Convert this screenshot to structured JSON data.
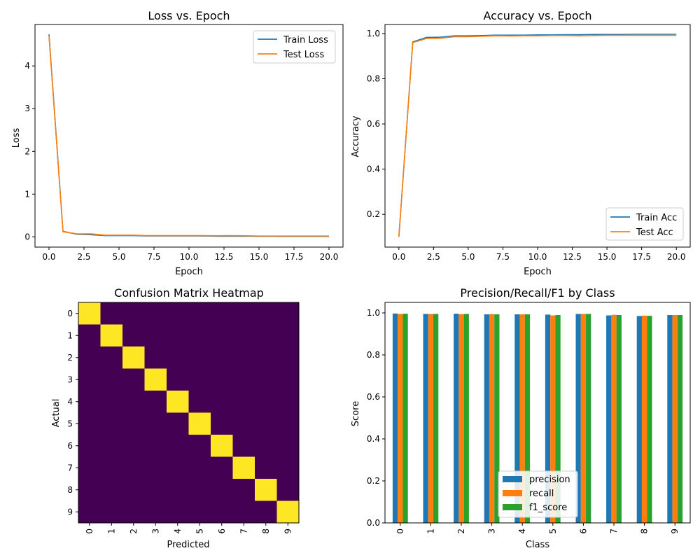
{
  "chart_data": [
    {
      "type": "line",
      "title": "Loss vs. Epoch",
      "xlabel": "Epoch",
      "ylabel": "Loss",
      "xlim": [
        -1,
        21
      ],
      "ylim": [
        -0.24,
        4.97
      ],
      "xticks": [
        0,
        2.5,
        5,
        7.5,
        10,
        12.5,
        15,
        17.5,
        20
      ],
      "xtick_labels": [
        "0.0",
        "2.5",
        "5.0",
        "7.5",
        "10.0",
        "12.5",
        "15.0",
        "17.5",
        "20.0"
      ],
      "yticks": [
        0,
        1,
        2,
        3,
        4
      ],
      "ytick_labels": [
        "0",
        "1",
        "2",
        "3",
        "4"
      ],
      "legend_position": "top-right",
      "x": [
        0,
        1,
        2,
        3,
        4,
        5,
        6,
        7,
        8,
        9,
        10,
        11,
        12,
        13,
        14,
        15,
        16,
        17,
        18,
        19,
        20
      ],
      "series": [
        {
          "name": "Train Loss",
          "color": "#1f77b4",
          "values": [
            4.74,
            0.13,
            0.06,
            0.05,
            0.03,
            0.03,
            0.03,
            0.02,
            0.02,
            0.02,
            0.02,
            0.02,
            0.015,
            0.015,
            0.015,
            0.012,
            0.012,
            0.011,
            0.011,
            0.01,
            0.01
          ]
        },
        {
          "name": "Test Loss",
          "color": "#ff7f0e",
          "values": [
            4.7,
            0.12,
            0.07,
            0.07,
            0.04,
            0.04,
            0.04,
            0.03,
            0.03,
            0.03,
            0.03,
            0.03,
            0.025,
            0.03,
            0.025,
            0.02,
            0.02,
            0.02,
            0.02,
            0.02,
            0.02
          ]
        }
      ]
    },
    {
      "type": "line",
      "title": "Accuracy vs. Epoch",
      "xlabel": "Epoch",
      "ylabel": "Accuracy",
      "xlim": [
        -1,
        21
      ],
      "ylim": [
        0.055,
        1.04
      ],
      "xticks": [
        0,
        2.5,
        5,
        7.5,
        10,
        12.5,
        15,
        17.5,
        20
      ],
      "xtick_labels": [
        "0.0",
        "2.5",
        "5.0",
        "7.5",
        "10.0",
        "12.5",
        "15.0",
        "17.5",
        "20.0"
      ],
      "yticks": [
        0.2,
        0.4,
        0.6,
        0.8,
        1.0
      ],
      "ytick_labels": [
        "0.2",
        "0.4",
        "0.6",
        "0.8",
        "1.0"
      ],
      "legend_position": "lower-right",
      "x": [
        0,
        1,
        2,
        3,
        4,
        5,
        6,
        7,
        8,
        9,
        10,
        11,
        12,
        13,
        14,
        15,
        16,
        17,
        18,
        19,
        20
      ],
      "series": [
        {
          "name": "Train Acc",
          "color": "#1f77b4",
          "values": [
            0.1,
            0.963,
            0.983,
            0.984,
            0.99,
            0.99,
            0.991,
            0.993,
            0.993,
            0.993,
            0.994,
            0.994,
            0.995,
            0.995,
            0.996,
            0.996,
            0.996,
            0.997,
            0.997,
            0.997,
            0.997
          ]
        },
        {
          "name": "Test Acc",
          "color": "#ff7f0e",
          "values": [
            0.1,
            0.96,
            0.978,
            0.979,
            0.986,
            0.986,
            0.988,
            0.99,
            0.989,
            0.99,
            0.99,
            0.991,
            0.991,
            0.99,
            0.991,
            0.992,
            0.992,
            0.992,
            0.992,
            0.992,
            0.992
          ]
        }
      ]
    },
    {
      "type": "heatmap",
      "title": "Confusion Matrix Heatmap",
      "xlabel": "Predicted",
      "ylabel": "Actual",
      "labels": [
        "0",
        "1",
        "2",
        "3",
        "4",
        "5",
        "6",
        "7",
        "8",
        "9"
      ],
      "matrix": [
        [
          1,
          0,
          0,
          0,
          0,
          0,
          0,
          0,
          0,
          0
        ],
        [
          0,
          1,
          0,
          0,
          0,
          0,
          0,
          0,
          0,
          0
        ],
        [
          0,
          0,
          1,
          0,
          0,
          0,
          0,
          0,
          0,
          0
        ],
        [
          0,
          0,
          0,
          1,
          0,
          0,
          0,
          0,
          0,
          0
        ],
        [
          0,
          0,
          0,
          0,
          1,
          0,
          0,
          0,
          0,
          0
        ],
        [
          0,
          0,
          0,
          0,
          0,
          1,
          0,
          0,
          0,
          0
        ],
        [
          0,
          0,
          0,
          0,
          0,
          0,
          1,
          0,
          0,
          0
        ],
        [
          0,
          0,
          0,
          0,
          0,
          0,
          0,
          1,
          0,
          0
        ],
        [
          0,
          0,
          0,
          0,
          0,
          0,
          0,
          0,
          1,
          0
        ],
        [
          0,
          0,
          0,
          0,
          0,
          0,
          0,
          0,
          0,
          1
        ]
      ],
      "colors": {
        "low": "#440154",
        "high": "#fde725"
      }
    },
    {
      "type": "bar",
      "title": "Precision/Recall/F1 by Class",
      "xlabel": "Class",
      "ylabel": "Score",
      "ylim": [
        0,
        1.05
      ],
      "yticks": [
        0,
        0.2,
        0.4,
        0.6,
        0.8,
        1.0
      ],
      "ytick_labels": [
        "0.0",
        "0.2",
        "0.4",
        "0.6",
        "0.8",
        "1.0"
      ],
      "legend_position": "lower-center",
      "categories": [
        "0",
        "1",
        "2",
        "3",
        "4",
        "5",
        "6",
        "7",
        "8",
        "9"
      ],
      "series": [
        {
          "name": "precision",
          "color": "#1f77b4",
          "values": [
            0.997,
            0.995,
            0.996,
            0.993,
            0.993,
            0.992,
            0.995,
            0.988,
            0.985,
            0.99
          ]
        },
        {
          "name": "recall",
          "color": "#ff7f0e",
          "values": [
            0.995,
            0.995,
            0.994,
            0.994,
            0.993,
            0.988,
            0.995,
            0.991,
            0.987,
            0.99
          ]
        },
        {
          "name": "f1_score",
          "color": "#2ca02c",
          "values": [
            0.996,
            0.995,
            0.995,
            0.993,
            0.993,
            0.99,
            0.995,
            0.99,
            0.986,
            0.99
          ]
        }
      ]
    }
  ]
}
